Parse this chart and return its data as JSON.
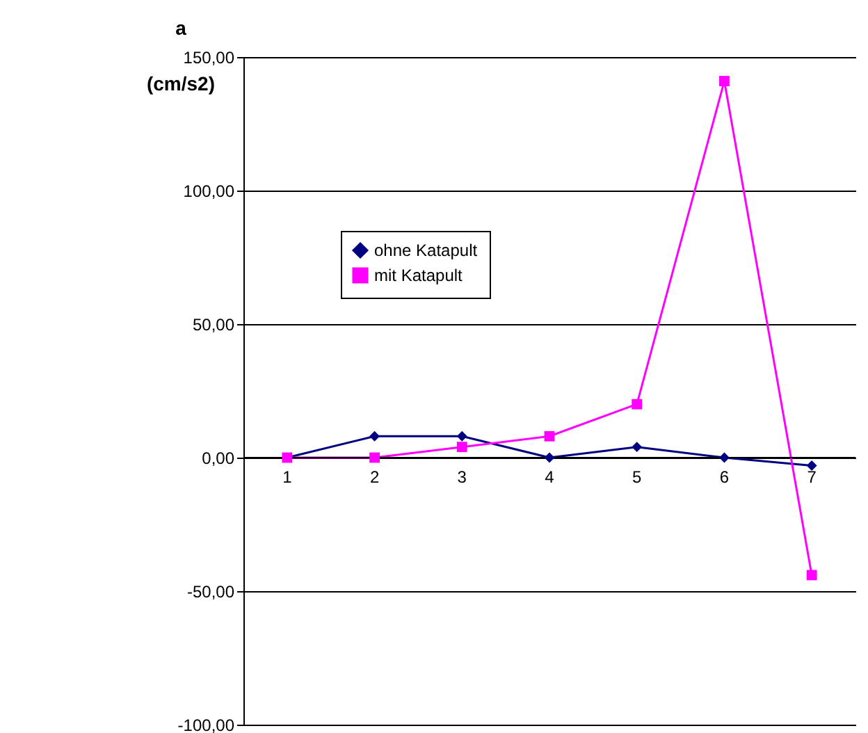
{
  "chart_data": {
    "type": "line",
    "title": "a",
    "ylabel": "(cm/s2)",
    "categories": [
      "1",
      "2",
      "3",
      "4",
      "5",
      "6",
      "7"
    ],
    "series": [
      {
        "name": "ohne Katapult",
        "color": "#000080",
        "marker": "diamond",
        "values": [
          0,
          8,
          8,
          0,
          4,
          0,
          -3
        ]
      },
      {
        "name": "mit Katapult",
        "color": "#ff00ff",
        "marker": "square",
        "values": [
          0,
          0,
          4,
          8,
          20,
          141,
          -44
        ]
      }
    ],
    "ylim": [
      -100,
      150
    ],
    "yticks": [
      {
        "value": -100,
        "label": "-100,00"
      },
      {
        "value": -50,
        "label": "-50,00"
      },
      {
        "value": 0,
        "label": "0,00"
      },
      {
        "value": 50,
        "label": "50,00"
      },
      {
        "value": 100,
        "label": "100,00"
      },
      {
        "value": 150,
        "label": "150,00"
      }
    ],
    "grid": "y",
    "legend": "left",
    "line_style": "solid"
  }
}
